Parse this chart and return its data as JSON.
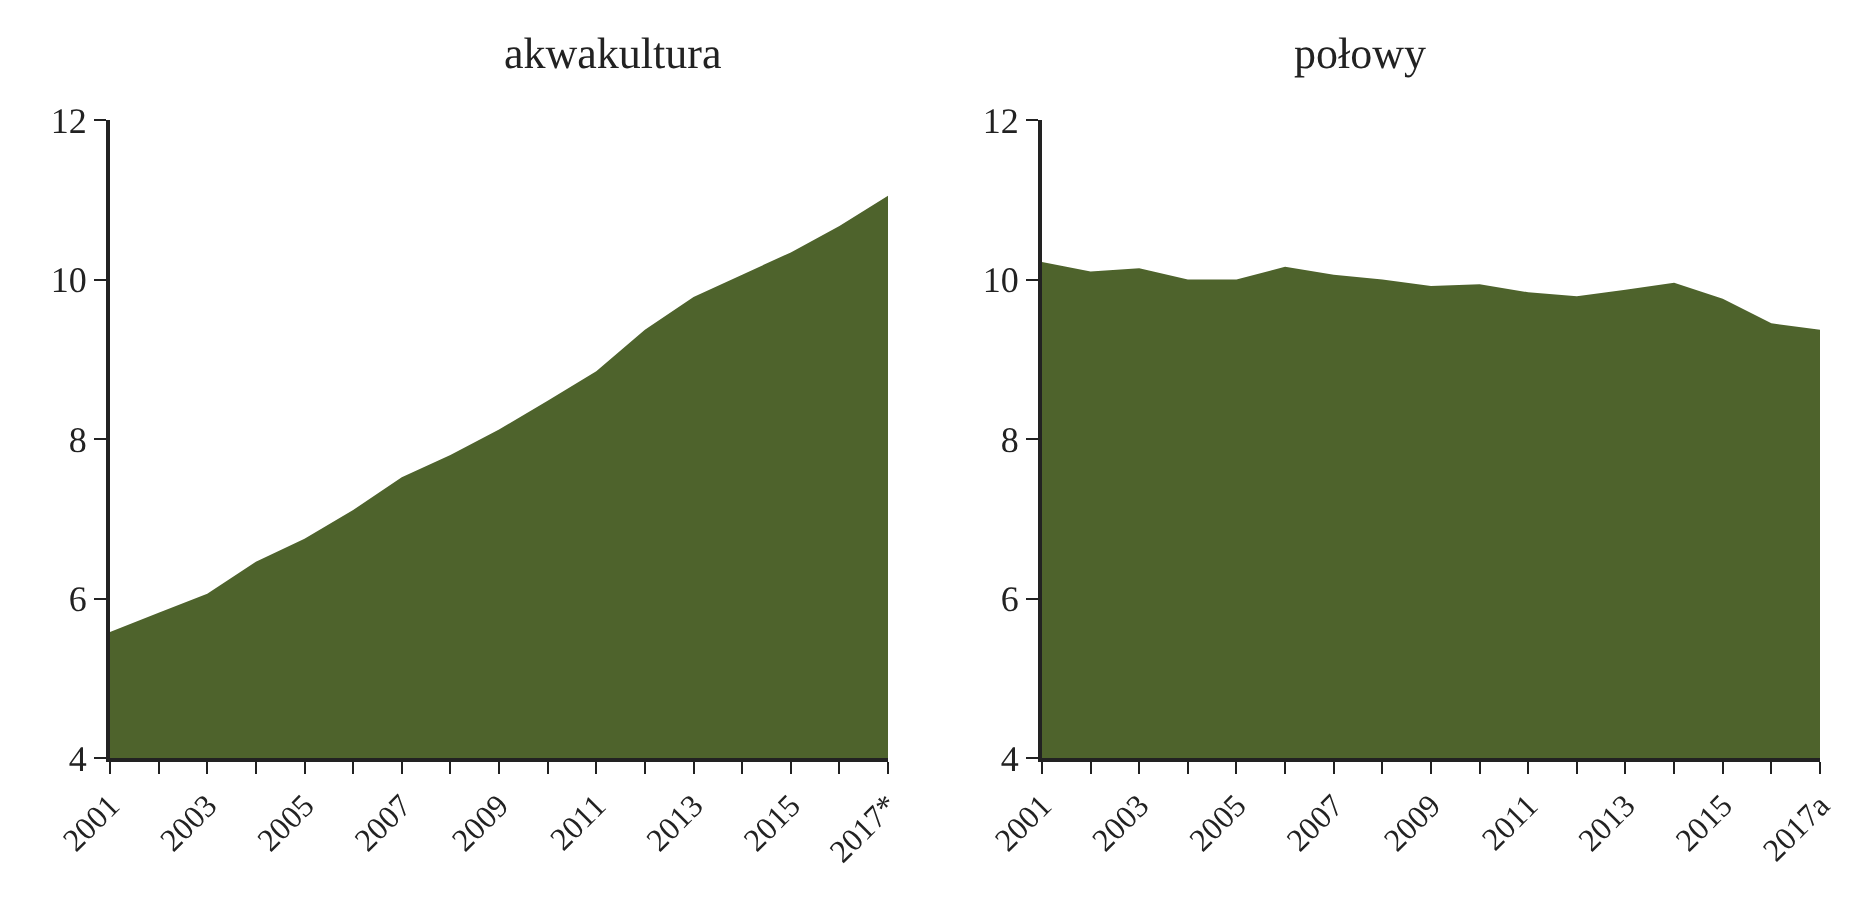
{
  "chart_data": [
    {
      "type": "area",
      "title": "akwakultura",
      "categories": [
        "2001",
        null,
        "2003",
        null,
        "2005",
        null,
        "2007",
        null,
        "2009",
        null,
        "2011",
        null,
        "2013",
        null,
        "2015",
        null,
        "2017*"
      ],
      "values": [
        5.58,
        5.82,
        6.06,
        6.46,
        6.75,
        7.11,
        7.52,
        7.8,
        8.12,
        8.48,
        8.85,
        9.37,
        9.78,
        10.06,
        10.34,
        10.67,
        11.05
      ],
      "color": "#4e632c",
      "ylim": [
        4,
        12
      ],
      "yticks": [
        4,
        6,
        8,
        10,
        12
      ]
    },
    {
      "type": "area",
      "title": "połowy",
      "categories": [
        "2001",
        null,
        "2003",
        null,
        "2005",
        null,
        "2007",
        null,
        "2009",
        null,
        "2011",
        null,
        "2013",
        null,
        "2015",
        null,
        "2017a"
      ],
      "values": [
        10.22,
        10.1,
        10.14,
        10.0,
        10.0,
        10.16,
        10.06,
        10.0,
        9.92,
        9.94,
        9.84,
        9.79,
        9.87,
        9.96,
        9.76,
        9.45,
        9.37
      ],
      "color": "#4e632c",
      "ylim": [
        4,
        12
      ],
      "yticks": [
        4,
        6,
        8,
        10,
        12
      ]
    }
  ]
}
